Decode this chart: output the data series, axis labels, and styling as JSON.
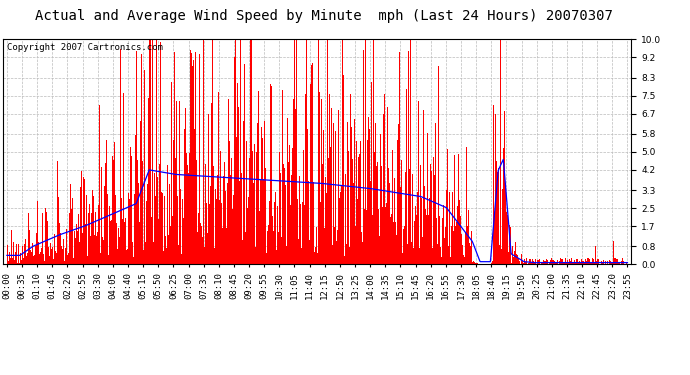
{
  "title": "Actual and Average Wind Speed by Minute  mph (Last 24 Hours) 20070307",
  "copyright_text": "Copyright 2007 Cartronics.com",
  "yticks": [
    0.0,
    0.8,
    1.7,
    2.5,
    3.3,
    4.2,
    5.0,
    5.8,
    6.7,
    7.5,
    8.3,
    9.2,
    10.0
  ],
  "ylim": [
    0.0,
    10.0
  ],
  "bar_color": "#FF0000",
  "line_color": "#0000FF",
  "background_color": "#FFFFFF",
  "grid_color": "#BBBBBB",
  "title_fontsize": 10,
  "copyright_fontsize": 6.5,
  "tick_fontsize": 6.5,
  "xtick_labels": [
    "00:00",
    "00:35",
    "01:10",
    "01:45",
    "02:20",
    "02:55",
    "03:30",
    "04:05",
    "04:40",
    "05:15",
    "05:50",
    "06:25",
    "07:00",
    "07:35",
    "08:10",
    "08:45",
    "09:20",
    "09:55",
    "10:30",
    "11:05",
    "11:40",
    "12:15",
    "12:50",
    "13:25",
    "14:00",
    "14:35",
    "15:10",
    "15:45",
    "16:20",
    "16:55",
    "17:30",
    "18:05",
    "18:40",
    "19:15",
    "19:50",
    "20:25",
    "21:00",
    "21:35",
    "22:10",
    "22:45",
    "23:20",
    "23:55"
  ]
}
